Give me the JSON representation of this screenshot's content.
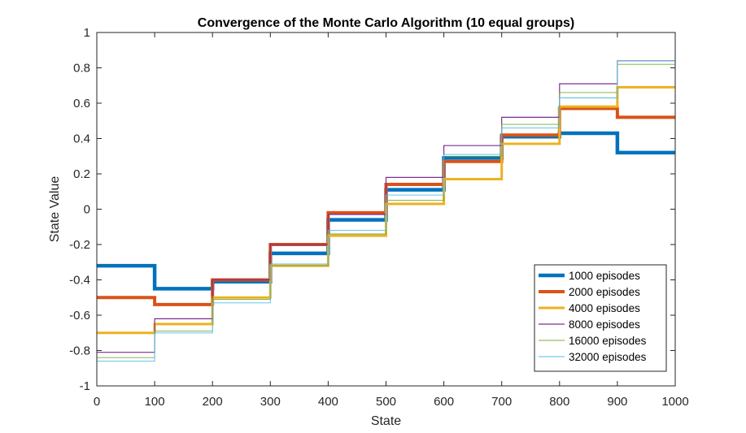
{
  "chart_data": {
    "type": "line",
    "title": "Convergence of the Monte Carlo Algorithm (10 equal groups)",
    "xlabel": "State",
    "ylabel": "State Value",
    "xlim": [
      0,
      1000
    ],
    "ylim": [
      -1,
      1
    ],
    "xticks": [
      "0",
      "100",
      "200",
      "300",
      "400",
      "500",
      "600",
      "700",
      "800",
      "900",
      "1000"
    ],
    "yticks": [
      "-1",
      "-0.8",
      "-0.6",
      "-0.4",
      "-0.2",
      "0",
      "0.2",
      "0.4",
      "0.6",
      "0.8",
      "1"
    ],
    "grid": false,
    "legend_position": "bottom-right",
    "group_edges": [
      0,
      100,
      200,
      300,
      400,
      500,
      600,
      700,
      800,
      900,
      1000
    ],
    "series": [
      {
        "name": "1000 episodes",
        "color": "#0072BD",
        "values": [
          -0.32,
          -0.45,
          -0.41,
          -0.25,
          -0.06,
          0.11,
          0.29,
          0.41,
          0.43,
          0.32
        ]
      },
      {
        "name": "2000 episodes",
        "color": "#D95319",
        "values": [
          -0.5,
          -0.54,
          -0.4,
          -0.2,
          -0.02,
          0.14,
          0.27,
          0.42,
          0.57,
          0.52
        ]
      },
      {
        "name": "4000 episodes",
        "color": "#EDB120",
        "values": [
          -0.7,
          -0.65,
          -0.5,
          -0.32,
          -0.15,
          0.03,
          0.17,
          0.37,
          0.58,
          0.69
        ]
      },
      {
        "name": "8000 episodes",
        "color": "#7E2F8E",
        "values": [
          -0.81,
          -0.62,
          -0.4,
          -0.2,
          -0.03,
          0.18,
          0.36,
          0.52,
          0.71,
          0.84
        ]
      },
      {
        "name": "16000 episodes",
        "color": "#77AC30",
        "values": [
          -0.84,
          -0.69,
          -0.51,
          -0.32,
          -0.14,
          0.05,
          0.3,
          0.48,
          0.66,
          0.82
        ]
      },
      {
        "name": "32000 episodes",
        "color": "#4DBEEE",
        "values": [
          -0.86,
          -0.7,
          -0.53,
          -0.31,
          -0.12,
          0.08,
          0.31,
          0.46,
          0.63,
          0.84
        ]
      }
    ]
  }
}
